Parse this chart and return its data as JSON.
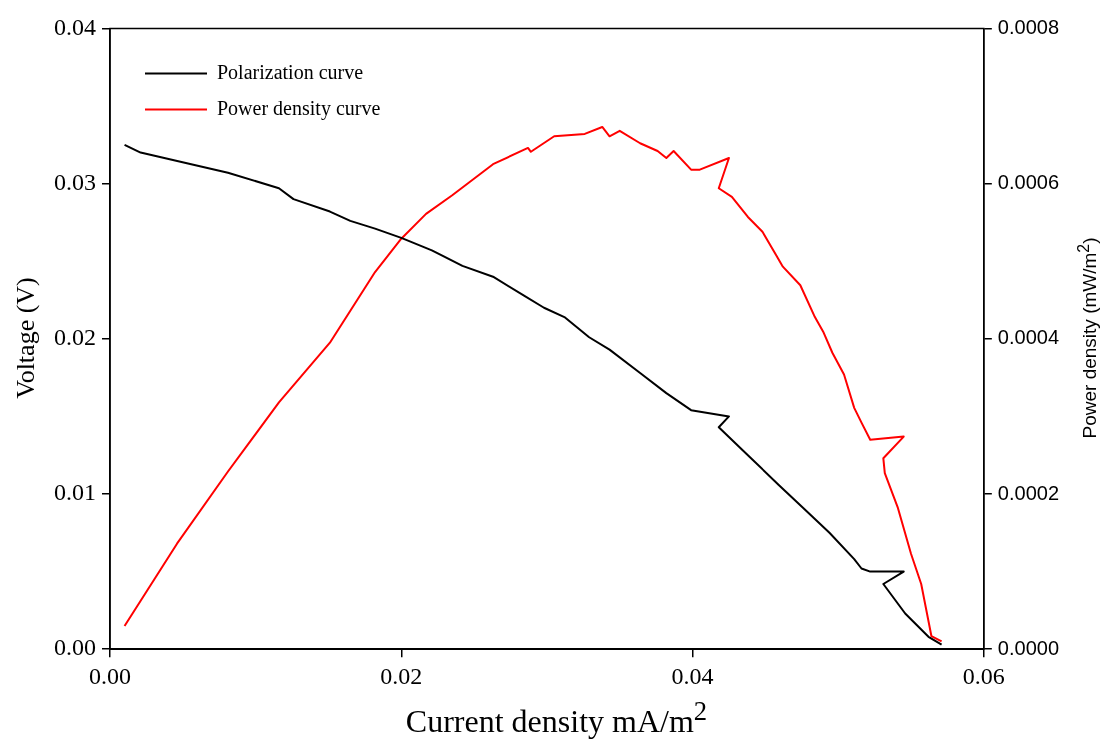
{
  "chart_data": {
    "type": "line",
    "xlabel": "Current density mA/m$^{2}$",
    "ylabel": "Voltage (V)",
    "y2label": "Power density (mW/m$^{2}$)",
    "xlim": [
      0,
      0.06
    ],
    "xticks": [
      {
        "value": 0,
        "label": "0.00"
      },
      {
        "value": 0.02,
        "label": "0.02"
      },
      {
        "value": 0.04,
        "label": "0.04"
      },
      {
        "value": 0.06,
        "label": "0.06"
      }
    ],
    "ylim": [
      0,
      0.04
    ],
    "yticks": [
      {
        "value": 0,
        "label": "0.00"
      },
      {
        "value": 0.01,
        "label": "0.01"
      },
      {
        "value": 0.02,
        "label": "0.02"
      },
      {
        "value": 0.03,
        "label": "0.03"
      },
      {
        "value": 0.04,
        "label": "0.04"
      }
    ],
    "y2lim": [
      0,
      0.0008
    ],
    "y2ticks": [
      {
        "value": 0,
        "label": "0.0000"
      },
      {
        "value": 0.0002,
        "label": "0.0002"
      },
      {
        "value": 0.0004,
        "label": "0.0004"
      },
      {
        "value": 0.0006,
        "label": "0.0006"
      },
      {
        "value": 0.0008,
        "label": "0.0008"
      }
    ],
    "legend": "top left",
    "grid": false,
    "marker": "none",
    "line_style": "solid",
    "series": [
      {
        "name": "Polarization curve",
        "color": "#000000",
        "x": [
          0.001,
          0.0021,
          0.0058,
          0.0081,
          0.0116,
          0.0126,
          0.0151,
          0.0165,
          0.0182,
          0.02,
          0.0221,
          0.0242,
          0.0263,
          0.0284,
          0.0298,
          0.0312,
          0.0329,
          0.0343,
          0.0364,
          0.0382,
          0.0399,
          0.0425,
          0.0418,
          0.0438,
          0.0459,
          0.0476,
          0.0494,
          0.0511,
          0.0516,
          0.0522,
          0.0545,
          0.0531,
          0.0546,
          0.0562,
          0.0571
        ],
        "values": [
          0.0325,
          0.032,
          0.0312,
          0.0307,
          0.0297,
          0.029,
          0.0282,
          0.0276,
          0.0271,
          0.0265,
          0.0257,
          0.0247,
          0.024,
          0.0228,
          0.022,
          0.0214,
          0.0201,
          0.0193,
          0.0178,
          0.0165,
          0.0154,
          0.015,
          0.0143,
          0.0125,
          0.0106,
          0.0091,
          0.0075,
          0.0058,
          0.0052,
          0.005,
          0.005,
          0.0042,
          0.0023,
          0.0008,
          0.0003
        ]
      },
      {
        "name": "Power density curve",
        "color": "#ff0000",
        "axis": "y2",
        "x": [
          0.001,
          0.0046,
          0.0081,
          0.0116,
          0.0151,
          0.0182,
          0.02,
          0.0217,
          0.0235,
          0.0263,
          0.0287,
          0.0289,
          0.0305,
          0.0326,
          0.0338,
          0.0343,
          0.035,
          0.0364,
          0.0376,
          0.0382,
          0.0387,
          0.0399,
          0.0405,
          0.0425,
          0.0418,
          0.0427,
          0.0438,
          0.0448,
          0.0462,
          0.0474,
          0.0484,
          0.049,
          0.0496,
          0.0504,
          0.0511,
          0.0516,
          0.0522,
          0.0545,
          0.0531,
          0.0532,
          0.0541,
          0.055,
          0.0557,
          0.0564,
          0.0571
        ],
        "values": [
          3e-05,
          0.000136,
          0.000229,
          0.000318,
          0.000395,
          0.000486,
          0.000529,
          0.000561,
          0.000585,
          0.000625,
          0.000646,
          0.000641,
          0.000661,
          0.000664,
          0.000673,
          0.000661,
          0.000668,
          0.000652,
          0.000642,
          0.000633,
          0.000642,
          0.000618,
          0.000618,
          0.000633,
          0.000594,
          0.000583,
          0.000557,
          0.000538,
          0.000493,
          0.000469,
          0.000428,
          0.000408,
          0.000382,
          0.000354,
          0.000311,
          0.000292,
          0.00027,
          0.000274,
          0.000246,
          0.000227,
          0.000182,
          0.000123,
          8.4e-05,
          1.7e-05,
          1e-05
        ]
      }
    ]
  }
}
